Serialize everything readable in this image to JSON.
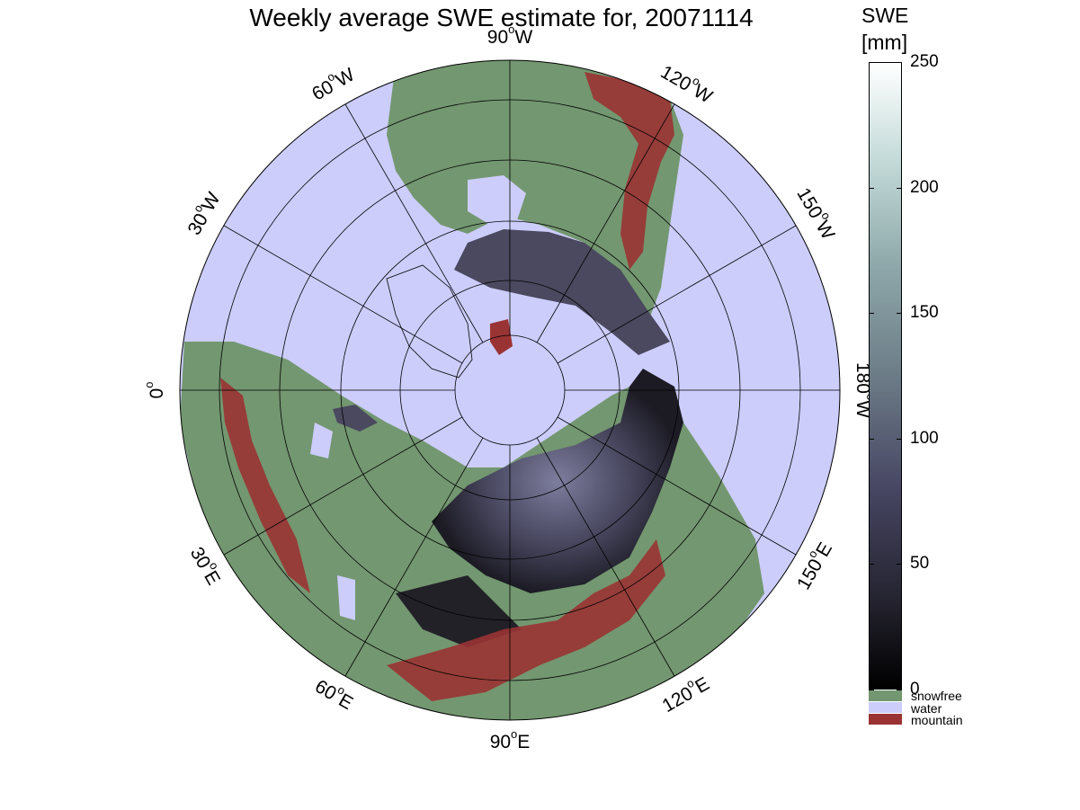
{
  "title": "Weekly average SWE estimate for, 20071114",
  "colorbar": {
    "title_line1": "SWE",
    "title_line2": "[mm]",
    "min": 0,
    "max": 250,
    "ticks": [
      "250",
      "200",
      "150",
      "100",
      "50",
      "0"
    ],
    "tick_values": [
      250,
      200,
      150,
      100,
      50,
      0
    ]
  },
  "legend": [
    {
      "label": "snowfree",
      "color": "#739770"
    },
    {
      "label": "water",
      "color": "#cccdfb"
    },
    {
      "label": "mountain",
      "color": "#9a3333"
    }
  ],
  "map": {
    "projection": "north polar stereographic",
    "background_color": "#cccdfb",
    "longitude_labels": [
      {
        "deg": "90",
        "hemi": "W"
      },
      {
        "deg": "120",
        "hemi": "W"
      },
      {
        "deg": "150",
        "hemi": "W"
      },
      {
        "deg": "180",
        "hemi": "W"
      },
      {
        "deg": "150",
        "hemi": "E"
      },
      {
        "deg": "120",
        "hemi": "E"
      },
      {
        "deg": "90",
        "hemi": "E"
      },
      {
        "deg": "60",
        "hemi": "E"
      },
      {
        "deg": "30",
        "hemi": "E"
      },
      {
        "deg": "0",
        "hemi": ""
      },
      {
        "deg": "30",
        "hemi": "W"
      },
      {
        "deg": "60",
        "hemi": "W"
      }
    ]
  }
}
